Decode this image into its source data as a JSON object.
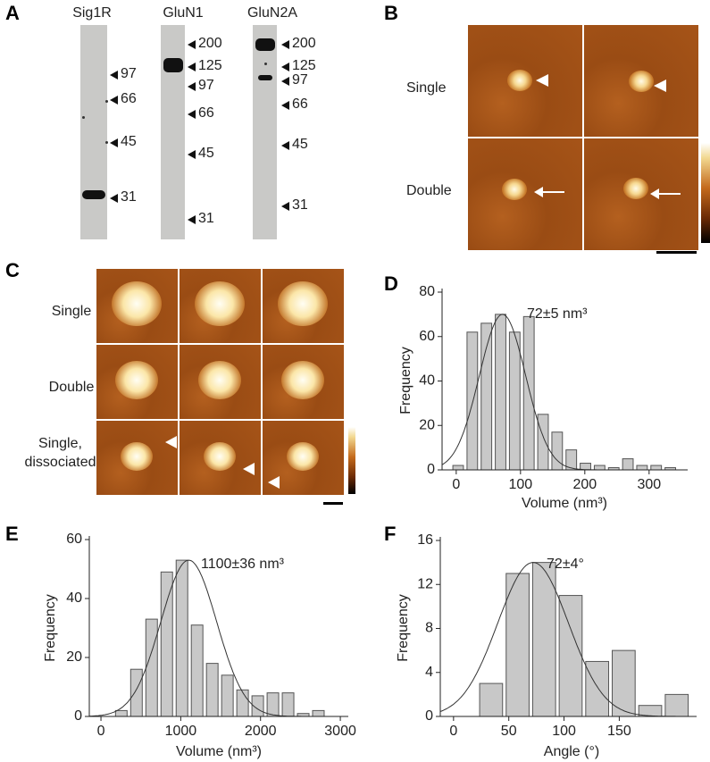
{
  "panels": [
    "A",
    "B",
    "C",
    "D",
    "E",
    "F"
  ],
  "blot": {
    "lanes": [
      {
        "label": "Sig1R",
        "markers": [
          "97",
          "66",
          "45",
          "31"
        ]
      },
      {
        "label": "GluN1",
        "markers": [
          "200",
          "125",
          "97",
          "66",
          "45",
          "31"
        ]
      },
      {
        "label": "GluN2A",
        "markers": [
          "200",
          "125",
          "97",
          "66",
          "45",
          "31"
        ]
      }
    ]
  },
  "afm_b": {
    "rows": [
      "Single",
      "Double"
    ]
  },
  "afm_c": {
    "rows": [
      "Single",
      "Double",
      "Single, dissociated"
    ]
  },
  "chart_data": [
    {
      "type": "histogram",
      "ylabel": "Frequency",
      "xlabel": "Volume (nm³)",
      "annotation": "72±5 nm³",
      "bins": [
        -8,
        14,
        36,
        58,
        80,
        102,
        124,
        146,
        168,
        190,
        212,
        234,
        256,
        278,
        300,
        322,
        344
      ],
      "values": [
        2,
        62,
        66,
        70,
        62,
        69,
        25,
        17,
        9,
        3,
        2,
        1,
        5,
        2,
        2,
        1
      ],
      "fit": {
        "mean": 72,
        "sd": 36,
        "peak": 70
      },
      "color": "#c8c8c8",
      "xlim": [
        -22,
        360
      ],
      "ylim": [
        0,
        80
      ],
      "xticks": [
        0,
        100,
        200,
        300
      ],
      "yticks": [
        0,
        20,
        40,
        60,
        80
      ]
    },
    {
      "type": "histogram",
      "ylabel": "Frequency",
      "xlabel": "Volume (nm³)",
      "annotation": "1100±36 nm³",
      "bins": [
        160,
        350,
        540,
        730,
        920,
        1110,
        1300,
        1490,
        1680,
        1870,
        2060,
        2250,
        2440,
        2630,
        2820
      ],
      "values": [
        2,
        16,
        33,
        49,
        53,
        31,
        18,
        14,
        9,
        7,
        8,
        8,
        1,
        2
      ],
      "fit": {
        "mean": 1100,
        "sd": 350,
        "peak": 53
      },
      "color": "#c8c8c8",
      "xlim": [
        -146,
        3100
      ],
      "ylim": [
        0,
        60
      ],
      "xticks": [
        0,
        1000,
        2000,
        3000
      ],
      "yticks": [
        0,
        20,
        40,
        60
      ]
    },
    {
      "type": "histogram",
      "ylabel": "Frequency",
      "xlabel": "Angle (°)",
      "annotation": "72±4°",
      "bins": [
        22,
        46,
        70,
        94,
        118,
        142,
        166,
        190,
        214
      ],
      "values": [
        3,
        13,
        14,
        11,
        5,
        6,
        1,
        2
      ],
      "fit": {
        "mean": 72,
        "sd": 32,
        "peak": 14
      },
      "color": "#c8c8c8",
      "xlim": [
        -12,
        220
      ],
      "ylim": [
        0,
        16
      ],
      "xticks": [
        0,
        50,
        100,
        150
      ],
      "yticks": [
        0,
        4,
        8,
        12,
        16
      ]
    }
  ]
}
